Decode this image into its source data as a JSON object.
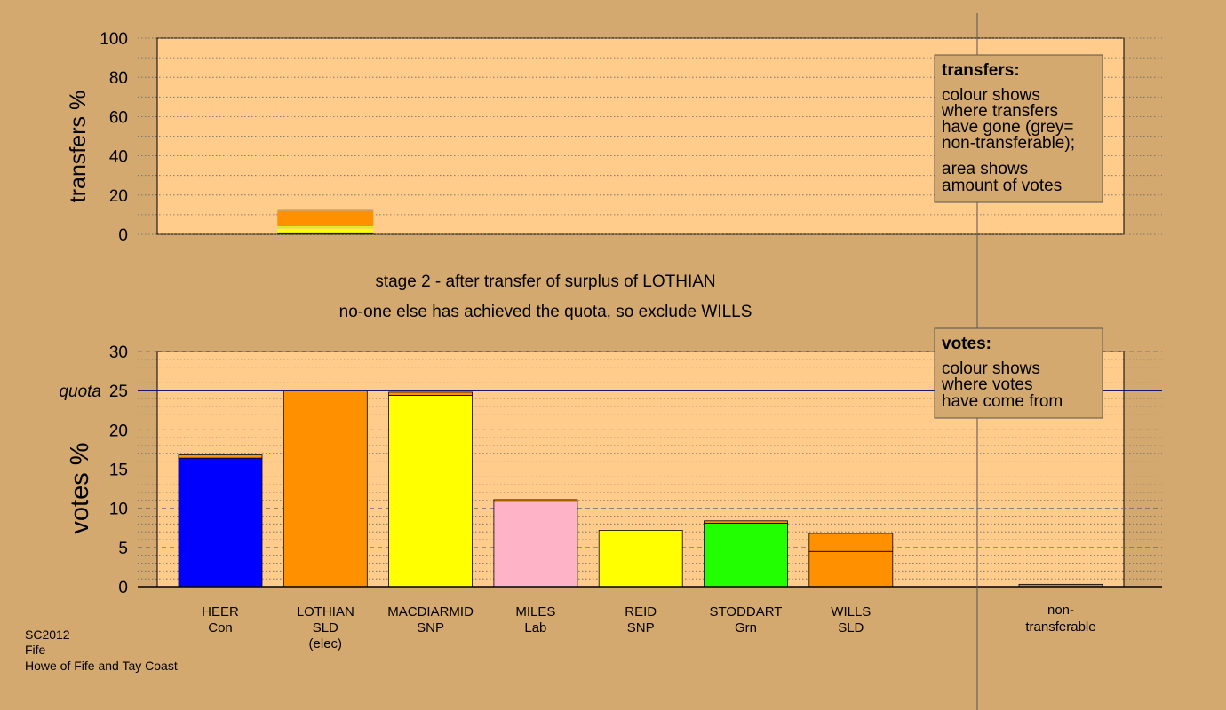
{
  "chart_data": [
    {
      "type": "bar",
      "panel": "transfers",
      "ylabel": "transfers %",
      "ylim": [
        0,
        100
      ],
      "yticks": [
        0,
        20,
        40,
        60,
        80,
        100
      ],
      "bars": [
        {
          "category": "LOTHIAN",
          "segments": [
            {
              "to": "HEER",
              "value": 1.0,
              "color": "#0000ff"
            },
            {
              "to": "MACDIARMID",
              "value": 2.0,
              "color": "#ffff00"
            },
            {
              "to": "MILES",
              "value": 0.7,
              "color": "#ffb3c6"
            },
            {
              "to": "REID",
              "value": 0.3,
              "color": "#ffff00"
            },
            {
              "to": "STODDART",
              "value": 1.0,
              "color": "#22ff00"
            },
            {
              "to": "WILLS",
              "value": 7.0,
              "color": "#ff9000"
            },
            {
              "to": "non-transferable",
              "value": 0.6,
              "color": "#b0b0b0"
            }
          ]
        }
      ],
      "legend": {
        "title": "transfers:",
        "lines1": [
          "colour shows",
          "where transfers",
          "have gone (grey=",
          "non-transferable);"
        ],
        "lines2": [
          "area shows",
          "amount of votes"
        ]
      }
    },
    {
      "type": "bar",
      "panel": "votes",
      "ylabel": "votes %",
      "ylim": [
        0,
        30
      ],
      "yticks": [
        0,
        5,
        10,
        15,
        20,
        25,
        30
      ],
      "quota": {
        "label": "quota",
        "value": 25
      },
      "candidates": [
        {
          "name": "HEER",
          "party": "Con",
          "extra": "",
          "base": 16.4,
          "transfer": 0.4,
          "color": "#0000ff"
        },
        {
          "name": "LOTHIAN",
          "party": "SLD",
          "extra": "(elec)",
          "base": 25.0,
          "transfer": 0,
          "color": "#ff9000"
        },
        {
          "name": "MACDIARMID",
          "party": "SNP",
          "extra": "",
          "base": 24.4,
          "transfer": 0.4,
          "color": "#ffff00"
        },
        {
          "name": "MILES",
          "party": "Lab",
          "extra": "",
          "base": 10.9,
          "transfer": 0.2,
          "color": "#ffb3c6"
        },
        {
          "name": "REID",
          "party": "SNP",
          "extra": "",
          "base": 7.2,
          "transfer": 0,
          "color": "#ffff00"
        },
        {
          "name": "STODDART",
          "party": "Grn",
          "extra": "",
          "base": 8.1,
          "transfer": 0.3,
          "color": "#22ff00"
        },
        {
          "name": "WILLS",
          "party": "SLD",
          "extra": "",
          "base": 4.5,
          "transfer": 2.3,
          "color": "#ff9000"
        }
      ],
      "nontransferable": {
        "label1": "non-",
        "label2": "transferable",
        "value": 0.3,
        "color": "#c08a50"
      },
      "legend": {
        "title": "votes:",
        "lines": [
          "colour shows",
          "where votes",
          "have come from"
        ]
      }
    }
  ],
  "captions": {
    "line1": "stage 2 - after transfer of surplus of LOTHIAN",
    "line2": "no-one else has achieved the quota, so exclude WILLS"
  },
  "footer": {
    "line1": "SC2012",
    "line2": "Fife",
    "line3": "Howe of Fife and Tay Coast"
  },
  "colors": {
    "background": "#d4a96f",
    "plot_bg": "#ffcc8c",
    "transfer_colour": "#ff9000"
  }
}
